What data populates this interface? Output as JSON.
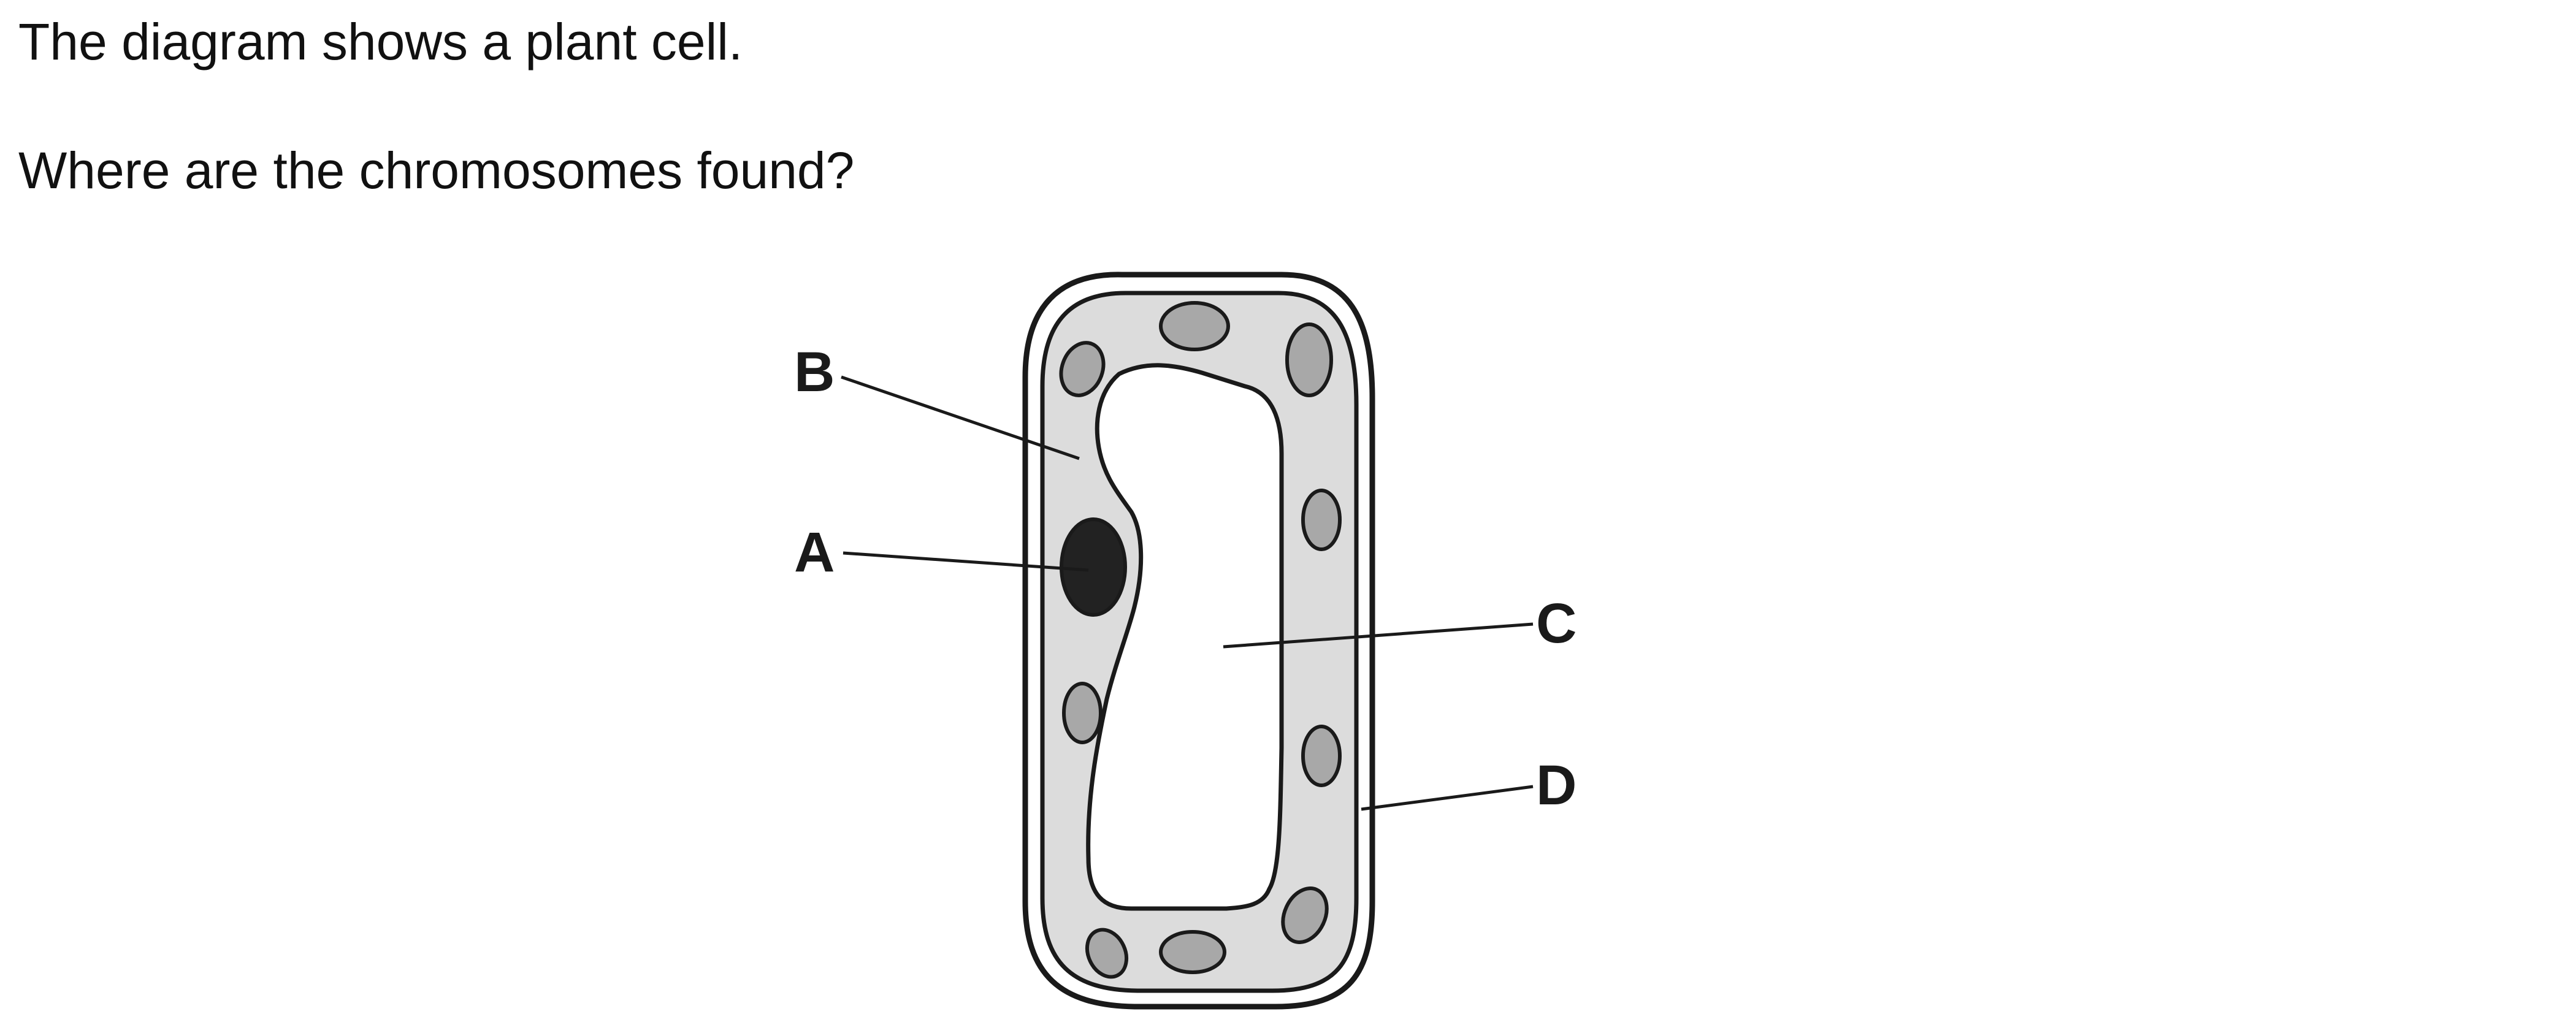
{
  "question": {
    "intro": "The diagram shows a plant cell.",
    "prompt": "Where are the chromosomes found?"
  },
  "diagram": {
    "labels": {
      "a": "A",
      "b": "B",
      "c": "C",
      "d": "D"
    },
    "colors": {
      "outline": "#1a1a1a",
      "cytoplasm": "#dcdcdc",
      "chloroplast": "#a8a8a8",
      "nucleus": "#222222",
      "vacuole": "#ffffff",
      "wall_gap": "#ffffff"
    }
  }
}
